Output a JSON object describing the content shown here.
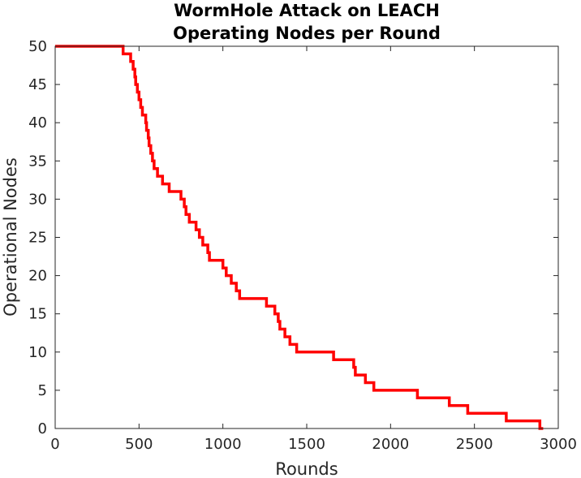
{
  "chart_data": {
    "type": "line",
    "title": [
      "WormHole Attack on LEACH",
      "Operating Nodes per Round"
    ],
    "xlabel": "Rounds",
    "ylabel": "Operational Nodes",
    "xlim": [
      0,
      3000
    ],
    "ylim": [
      0,
      50
    ],
    "xticks": [
      "0",
      "500",
      "1000",
      "1500",
      "2000",
      "2500",
      "3000"
    ],
    "yticks": [
      "0",
      "5",
      "10",
      "15",
      "20",
      "25",
      "30",
      "35",
      "40",
      "45",
      "50"
    ],
    "grid": false,
    "series": [
      {
        "color": "#ff0000",
        "step": true,
        "x": [
          0,
          405,
          450,
          465,
          475,
          480,
          490,
          500,
          510,
          520,
          540,
          545,
          555,
          560,
          570,
          580,
          590,
          610,
          640,
          680,
          750,
          770,
          780,
          800,
          840,
          860,
          880,
          910,
          920,
          940,
          1000,
          1020,
          1030,
          1050,
          1060,
          1080,
          1100,
          1260,
          1280,
          1310,
          1320,
          1330,
          1340,
          1370,
          1380,
          1400,
          1440,
          1660,
          1670,
          1780,
          1790,
          1850,
          1860,
          1870,
          1900,
          2160,
          2170,
          2350,
          2360,
          2460,
          2470,
          2690,
          2700,
          2890,
          2910
        ],
        "y": [
          50,
          49,
          48,
          47,
          46,
          45,
          44,
          43,
          42,
          41,
          40,
          39,
          38,
          37,
          36,
          35,
          34,
          33,
          32,
          31,
          30,
          29,
          28,
          27,
          26,
          25,
          24,
          23,
          22,
          22,
          21,
          20,
          20,
          19,
          19,
          18,
          17,
          16,
          16,
          15,
          15,
          14,
          13,
          12,
          12,
          11,
          10,
          9,
          9,
          8,
          7,
          6,
          6,
          6,
          5,
          4,
          4,
          3,
          3,
          2,
          2,
          1,
          1,
          0,
          0
        ]
      }
    ]
  }
}
